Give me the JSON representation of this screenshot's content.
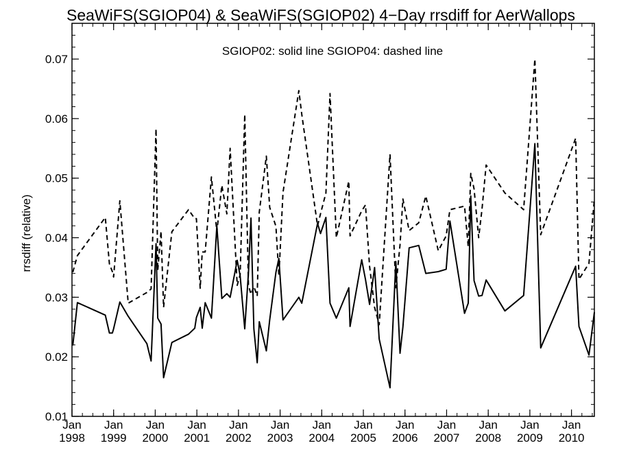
{
  "chart_data": {
    "type": "line",
    "title": "SeaWiFS(SGIOP04) & SeaWiFS(SGIOP02) 4−Day rrsdiff for AerWallops",
    "xlabel": "",
    "ylabel": "rrsdiff (relative)",
    "annotation": "SGIOP02: solid line   SGIOP04: dashed line",
    "x_range": [
      1998.0,
      2010.55
    ],
    "ylim": [
      0.01,
      0.076
    ],
    "grid": false,
    "legend": "none",
    "yticks": [
      "0.01",
      "0.02",
      "0.03",
      "0.04",
      "0.05",
      "0.06",
      "0.07"
    ],
    "xticks": [
      {
        "month": "Jan",
        "year": "1998"
      },
      {
        "month": "Jan",
        "year": "1999"
      },
      {
        "month": "Jan",
        "year": "2000"
      },
      {
        "month": "Jan",
        "year": "2001"
      },
      {
        "month": "Jan",
        "year": "2002"
      },
      {
        "month": "Jan",
        "year": "2003"
      },
      {
        "month": "Jan",
        "year": "2004"
      },
      {
        "month": "Jan",
        "year": "2005"
      },
      {
        "month": "Jan",
        "year": "2006"
      },
      {
        "month": "Jan",
        "year": "2007"
      },
      {
        "month": "Jan",
        "year": "2008"
      },
      {
        "month": "Jan",
        "year": "2009"
      },
      {
        "month": "Jan",
        "year": "2010"
      }
    ],
    "series": [
      {
        "name": "SGIOP02",
        "style": "solid",
        "color": "#000000",
        "x": [
          1998.02,
          1998.13,
          1998.8,
          1998.9,
          1998.97,
          1999.0,
          1999.15,
          1999.35,
          1999.8,
          1999.9,
          2000.02,
          2000.06,
          2000.14,
          2000.2,
          2000.4,
          2000.8,
          2000.95,
          2000.99,
          2001.08,
          2001.13,
          2001.2,
          2001.35,
          2001.48,
          2001.6,
          2001.72,
          2001.8,
          2001.97,
          2002.04,
          2002.15,
          2002.24,
          2002.3,
          2002.37,
          2002.45,
          2002.5,
          2002.67,
          2002.75,
          2002.9,
          2002.97,
          2003.07,
          2003.45,
          2003.52,
          2003.9,
          2003.97,
          2004.1,
          2004.2,
          2004.35,
          2004.65,
          2004.68,
          2004.96,
          2005.05,
          2005.15,
          2005.27,
          2005.38,
          2005.64,
          2005.78,
          2005.88,
          2005.95,
          2006.1,
          2006.33,
          2006.5,
          2006.8,
          2006.99,
          2007.08,
          2007.43,
          2007.52,
          2007.58,
          2007.66,
          2007.77,
          2007.85,
          2007.95,
          2008.4,
          2008.85,
          2009.12,
          2009.26,
          2010.1,
          2010.18,
          2010.42,
          2010.55
        ],
        "y": [
          0.0219,
          0.0291,
          0.027,
          0.024,
          0.024,
          0.0247,
          0.0292,
          0.0268,
          0.0222,
          0.0193,
          0.039,
          0.0265,
          0.0255,
          0.0165,
          0.0224,
          0.0238,
          0.0248,
          0.0266,
          0.0283,
          0.0248,
          0.0291,
          0.0265,
          0.042,
          0.0298,
          0.0306,
          0.03,
          0.0362,
          0.0336,
          0.0247,
          0.0341,
          0.0433,
          0.0247,
          0.019,
          0.0259,
          0.021,
          0.0262,
          0.0342,
          0.0365,
          0.0262,
          0.03,
          0.029,
          0.0424,
          0.0407,
          0.0434,
          0.029,
          0.0265,
          0.0316,
          0.0251,
          0.0363,
          0.033,
          0.0288,
          0.035,
          0.023,
          0.0148,
          0.036,
          0.0206,
          0.025,
          0.0383,
          0.0387,
          0.034,
          0.0343,
          0.0347,
          0.0428,
          0.0273,
          0.029,
          0.047,
          0.0328,
          0.0302,
          0.0303,
          0.0329,
          0.0277,
          0.0303,
          0.0558,
          0.0215,
          0.0352,
          0.0251,
          0.0203,
          0.0275
        ]
      },
      {
        "name": "SGIOP04",
        "style": "dashed",
        "color": "#000000",
        "x": [
          1998.02,
          1998.13,
          1998.8,
          1998.9,
          1998.97,
          1999.0,
          1999.15,
          1999.35,
          1999.8,
          1999.9,
          2000.02,
          2000.06,
          2000.14,
          2000.2,
          2000.4,
          2000.8,
          2000.95,
          2000.99,
          2001.08,
          2001.13,
          2001.2,
          2001.35,
          2001.48,
          2001.6,
          2001.72,
          2001.8,
          2001.97,
          2002.04,
          2002.15,
          2002.24,
          2002.3,
          2002.37,
          2002.45,
          2002.5,
          2002.67,
          2002.75,
          2002.9,
          2002.97,
          2003.07,
          2003.45,
          2003.52,
          2003.9,
          2003.97,
          2004.1,
          2004.2,
          2004.35,
          2004.65,
          2004.68,
          2004.96,
          2005.05,
          2005.15,
          2005.27,
          2005.38,
          2005.64,
          2005.78,
          2005.88,
          2005.95,
          2006.1,
          2006.33,
          2006.5,
          2006.8,
          2006.99,
          2007.08,
          2007.43,
          2007.52,
          2007.58,
          2007.66,
          2007.77,
          2007.85,
          2007.95,
          2008.4,
          2008.85,
          2009.12,
          2009.26,
          2010.1,
          2010.18,
          2010.42,
          2010.55
        ],
        "y": [
          0.0342,
          0.037,
          0.0434,
          0.0356,
          0.0343,
          0.0334,
          0.0462,
          0.029,
          0.0308,
          0.0314,
          0.0583,
          0.0345,
          0.0411,
          0.0283,
          0.041,
          0.0447,
          0.0432,
          0.0432,
          0.0315,
          0.0376,
          0.0376,
          0.0502,
          0.041,
          0.0488,
          0.044,
          0.055,
          0.032,
          0.0338,
          0.0607,
          0.032,
          0.0305,
          0.0318,
          0.0302,
          0.0443,
          0.0537,
          0.0451,
          0.0419,
          0.0336,
          0.0476,
          0.0647,
          0.0607,
          0.042,
          0.044,
          0.0475,
          0.0642,
          0.04,
          0.0495,
          0.0403,
          0.0445,
          0.0455,
          0.0352,
          0.0283,
          0.0254,
          0.054,
          0.0316,
          0.0388,
          0.0465,
          0.0412,
          0.0425,
          0.047,
          0.0378,
          0.0403,
          0.0447,
          0.0453,
          0.0385,
          0.0508,
          0.0482,
          0.04,
          0.0448,
          0.0522,
          0.0475,
          0.0447,
          0.07,
          0.0405,
          0.0567,
          0.033,
          0.0357,
          0.0465
        ]
      }
    ]
  }
}
